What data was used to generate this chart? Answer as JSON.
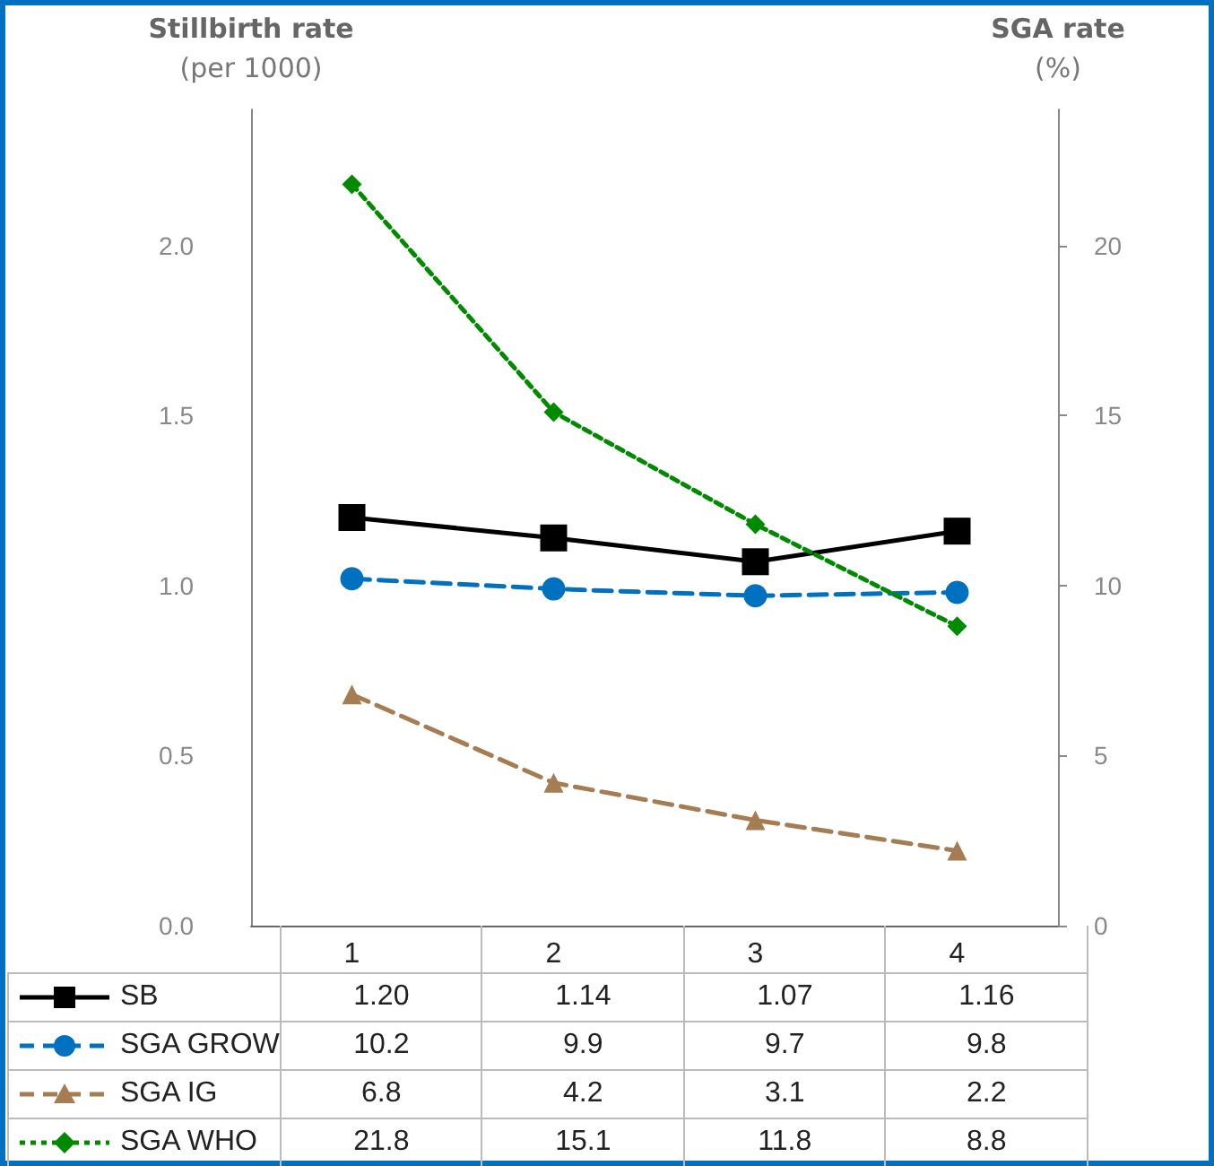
{
  "chart_data": {
    "type": "line",
    "ylabel": "Stillbirth rate\n(per 1000)",
    "y2label": "SGA rate\n(%)",
    "categories": [
      "1",
      "2",
      "3",
      "4"
    ],
    "ylim": [
      0,
      2.4
    ],
    "yticks": [
      {
        "value": 0,
        "label": "0.0"
      },
      {
        "value": 0.5,
        "label": "0.5"
      },
      {
        "value": 1,
        "label": "1.0"
      },
      {
        "value": 1.5,
        "label": "1.5"
      },
      {
        "value": 2,
        "label": "2.0"
      }
    ],
    "y2lim": [
      0,
      24
    ],
    "y2ticks": [
      0,
      5,
      10,
      15,
      20
    ],
    "grid": false,
    "legend": "bottom",
    "series": [
      {
        "name": "SB",
        "color": "#000000",
        "marker": "square",
        "line_style": "solid",
        "values": [
          1.2,
          1.14,
          1.07,
          1.16
        ],
        "value_labels": [
          "1.20",
          "1.14",
          "1.07",
          "1.16"
        ]
      },
      {
        "name": "SGA GROW",
        "color": "#0070c0",
        "marker": "circle",
        "line_style": "dashed",
        "axis": "y2",
        "values": [
          10.2,
          9.9,
          9.7,
          9.8
        ],
        "value_labels": [
          "10.2",
          "9.9",
          "9.7",
          "9.8"
        ]
      },
      {
        "name": "SGA IG",
        "color": "#a67c52",
        "marker": "triangle",
        "line_style": "dashed",
        "axis": "y2",
        "values": [
          6.8,
          4.2,
          3.1,
          2.2
        ],
        "value_labels": [
          "6.8",
          "4.2",
          "3.1",
          "2.2"
        ]
      },
      {
        "name": "SGA WHO",
        "color": "#008a00",
        "marker": "diamond",
        "line_style": "dotted",
        "axis": "y2",
        "values": [
          21.8,
          15.1,
          11.8,
          8.8
        ],
        "value_labels": [
          "21.8",
          "15.1",
          "11.8",
          "8.8"
        ]
      }
    ]
  }
}
